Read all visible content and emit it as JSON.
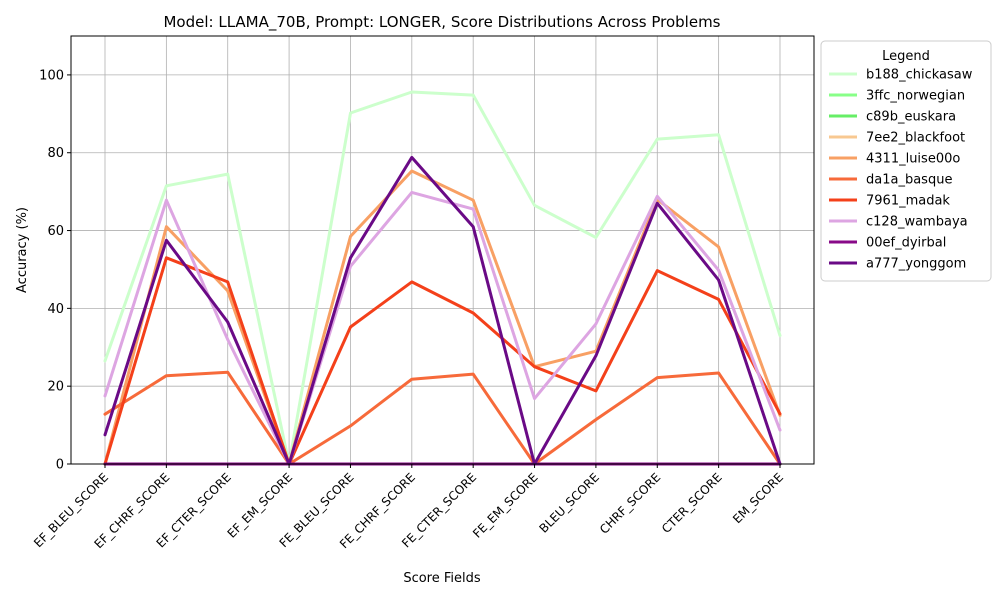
{
  "chart_data": {
    "type": "line",
    "title": "Model: LLAMA_70B, Prompt: LONGER, Score Distributions Across Problems",
    "xlabel": "Score Fields",
    "ylabel": "Accuracy (%)",
    "ylim": [
      0,
      110
    ],
    "yticks": [
      0,
      20,
      40,
      60,
      80,
      100
    ],
    "grid": true,
    "legend_title": "Legend",
    "legend_position": "outside-right",
    "categories": [
      "EF_BLEU_SCORE",
      "EF_CHRF_SCORE",
      "EF_CTER_SCORE",
      "EF_EM_SCORE",
      "FE_BLEU_SCORE",
      "FE_CHRF_SCORE",
      "FE_CTER_SCORE",
      "FE_EM_SCORE",
      "BLEU_SCORE",
      "CHRF_SCORE",
      "CTER_SCORE",
      "EM_SCORE"
    ],
    "series": [
      {
        "name": "b188_chickasaw",
        "color": "#ccffcc",
        "values": [
          26.5,
          71.5,
          74.5,
          0,
          90.2,
          95.6,
          94.8,
          66.5,
          58.2,
          83.5,
          84.6,
          33.0
        ]
      },
      {
        "name": "3ffc_norwegian",
        "color": "#88ff88",
        "values": [
          0,
          0,
          0,
          0,
          0,
          0,
          0,
          0,
          0,
          0,
          0,
          0
        ]
      },
      {
        "name": "c89b_euskara",
        "color": "#66ee66",
        "values": [
          0,
          0,
          0,
          0,
          0,
          0,
          0,
          0,
          0,
          0,
          0,
          0
        ]
      },
      {
        "name": "7ee2_blackfoot",
        "color": "#f8c891",
        "values": [
          0,
          0,
          0,
          0,
          0,
          0,
          0,
          0,
          0,
          0,
          0,
          0
        ]
      },
      {
        "name": "4311_luise00o",
        "color": "#f8a064",
        "values": [
          0,
          61.0,
          44.5,
          0,
          58.5,
          75.3,
          67.8,
          25.0,
          29.0,
          68.0,
          55.8,
          12.5
        ]
      },
      {
        "name": "da1a_basque",
        "color": "#f76a3a",
        "values": [
          12.8,
          22.7,
          23.6,
          0,
          9.8,
          21.8,
          23.1,
          0,
          11.4,
          22.2,
          23.4,
          0
        ]
      },
      {
        "name": "7961_madak",
        "color": "#f4401a",
        "values": [
          0,
          53.0,
          46.8,
          0,
          35.2,
          46.8,
          38.8,
          25.0,
          18.8,
          49.7,
          42.3,
          12.9
        ]
      },
      {
        "name": "c128_wambaya",
        "color": "#dda5e2",
        "values": [
          17.5,
          67.8,
          32.0,
          0,
          50.8,
          69.8,
          65.5,
          16.8,
          36.0,
          68.8,
          49.8,
          8.7
        ]
      },
      {
        "name": "00ef_dyirbal",
        "color": "#880a88",
        "values": [
          0,
          0,
          0,
          0,
          0,
          0,
          0,
          0,
          0,
          0,
          0,
          0
        ]
      },
      {
        "name": "a777_yonggom",
        "color": "#6a0a86",
        "values": [
          7.5,
          57.5,
          36.5,
          0,
          53.0,
          78.8,
          61.0,
          0,
          27.8,
          67.0,
          47.3,
          0
        ]
      }
    ]
  }
}
